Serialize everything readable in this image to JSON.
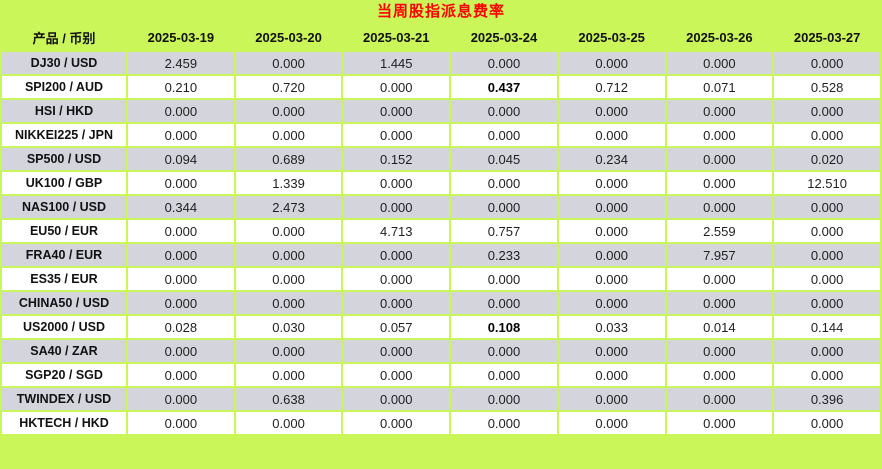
{
  "title": "当周股指派息费率",
  "colors": {
    "background_green": "#cbf65a",
    "row_gray": "#d3d4dc",
    "row_white": "#ffffff",
    "title_red": "#ff0000",
    "text_dark": "#1f1f1f"
  },
  "chart_data": {
    "type": "table",
    "title": "当周股指派息费率",
    "columns": [
      "产品 / 币别",
      "2025-03-19",
      "2025-03-20",
      "2025-03-21",
      "2025-03-24",
      "2025-03-25",
      "2025-03-26",
      "2025-03-27"
    ],
    "rows": [
      {
        "label": "DJ30 / USD",
        "values": [
          "2.459",
          "0.000",
          "1.445",
          "0.000",
          "0.000",
          "0.000",
          "0.000"
        ],
        "bold_value_indices": []
      },
      {
        "label": "SPI200 / AUD",
        "values": [
          "0.210",
          "0.720",
          "0.000",
          "0.437",
          "0.712",
          "0.071",
          "0.528"
        ],
        "bold_value_indices": [
          3
        ]
      },
      {
        "label": "HSI / HKD",
        "values": [
          "0.000",
          "0.000",
          "0.000",
          "0.000",
          "0.000",
          "0.000",
          "0.000"
        ],
        "bold_value_indices": []
      },
      {
        "label": "NIKKEI225 / JPN",
        "values": [
          "0.000",
          "0.000",
          "0.000",
          "0.000",
          "0.000",
          "0.000",
          "0.000"
        ],
        "bold_value_indices": []
      },
      {
        "label": "SP500 / USD",
        "values": [
          "0.094",
          "0.689",
          "0.152",
          "0.045",
          "0.234",
          "0.000",
          "0.020"
        ],
        "bold_value_indices": []
      },
      {
        "label": "UK100 / GBP",
        "values": [
          "0.000",
          "1.339",
          "0.000",
          "0.000",
          "0.000",
          "0.000",
          "12.510"
        ],
        "bold_value_indices": []
      },
      {
        "label": "NAS100 / USD",
        "values": [
          "0.344",
          "2.473",
          "0.000",
          "0.000",
          "0.000",
          "0.000",
          "0.000"
        ],
        "bold_value_indices": []
      },
      {
        "label": "EU50 / EUR",
        "values": [
          "0.000",
          "0.000",
          "4.713",
          "0.757",
          "0.000",
          "2.559",
          "0.000"
        ],
        "bold_value_indices": []
      },
      {
        "label": "FRA40 / EUR",
        "values": [
          "0.000",
          "0.000",
          "0.000",
          "0.233",
          "0.000",
          "7.957",
          "0.000"
        ],
        "bold_value_indices": []
      },
      {
        "label": "ES35 / EUR",
        "values": [
          "0.000",
          "0.000",
          "0.000",
          "0.000",
          "0.000",
          "0.000",
          "0.000"
        ],
        "bold_value_indices": []
      },
      {
        "label": "CHINA50 / USD",
        "values": [
          "0.000",
          "0.000",
          "0.000",
          "0.000",
          "0.000",
          "0.000",
          "0.000"
        ],
        "bold_value_indices": []
      },
      {
        "label": "US2000 / USD",
        "values": [
          "0.028",
          "0.030",
          "0.057",
          "0.108",
          "0.033",
          "0.014",
          "0.144"
        ],
        "bold_value_indices": [
          3
        ]
      },
      {
        "label": "SA40 / ZAR",
        "values": [
          "0.000",
          "0.000",
          "0.000",
          "0.000",
          "0.000",
          "0.000",
          "0.000"
        ],
        "bold_value_indices": []
      },
      {
        "label": "SGP20 / SGD",
        "values": [
          "0.000",
          "0.000",
          "0.000",
          "0.000",
          "0.000",
          "0.000",
          "0.000"
        ],
        "bold_value_indices": []
      },
      {
        "label": "TWINDEX / USD",
        "values": [
          "0.000",
          "0.638",
          "0.000",
          "0.000",
          "0.000",
          "0.000",
          "0.396"
        ],
        "bold_value_indices": []
      },
      {
        "label": "HKTECH / HKD",
        "values": [
          "0.000",
          "0.000",
          "0.000",
          "0.000",
          "0.000",
          "0.000",
          "0.000"
        ],
        "bold_value_indices": []
      }
    ]
  }
}
